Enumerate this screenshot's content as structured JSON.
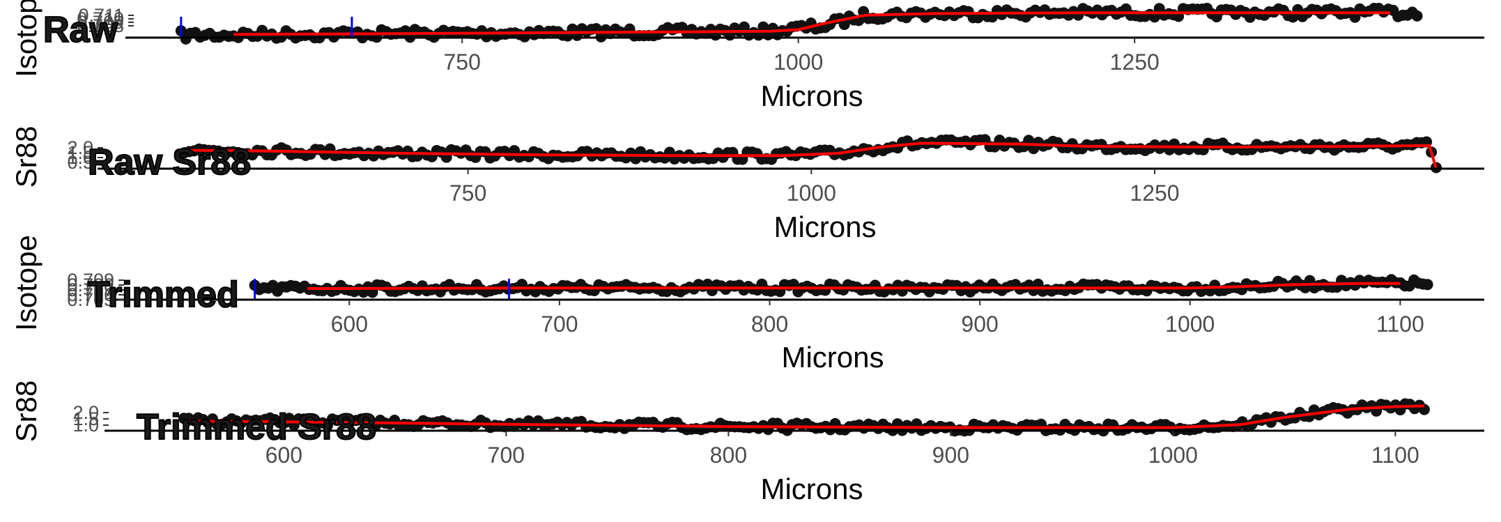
{
  "colors": {
    "points": "#111111",
    "fit_line": "#ff0000",
    "markers": "#0000ff",
    "axis": "#000000"
  },
  "chart_data": [
    {
      "type": "scatter",
      "title": "Raw",
      "xlabel": "Microns",
      "ylabel": "Isotope",
      "x_ticks": [
        "750",
        "1000",
        "1250"
      ],
      "y_ticks": [
        "0.711",
        "0.710",
        "0.709",
        "0.708"
      ],
      "xlim": [
        510,
        1510
      ],
      "ylim": [
        0.7075,
        0.7115
      ],
      "marker_lines_x": [
        541,
        668
      ],
      "series": [
        {
          "values_x": [
            541,
            600,
            700,
            800,
            900,
            980,
            1020,
            1050,
            1100,
            1200,
            1300,
            1400,
            1460
          ],
          "values_y": [
            0.7078,
            0.7079,
            0.708,
            0.7081,
            0.7082,
            0.7083,
            0.709,
            0.7103,
            0.7105,
            0.7106,
            0.7106,
            0.7106,
            0.7106
          ]
        }
      ],
      "fit_line": {
        "x": [
          580,
          700,
          800,
          900,
          980,
          1000,
          1020,
          1050,
          1100,
          1200,
          1300,
          1400,
          1440
        ],
        "y": [
          0.7079,
          0.708,
          0.7081,
          0.7082,
          0.7083,
          0.7085,
          0.7093,
          0.7103,
          0.7105,
          0.7106,
          0.7106,
          0.7106,
          0.7106
        ]
      }
    },
    {
      "type": "scatter",
      "title": "Raw Sr88",
      "xlabel": "Microns",
      "ylabel": "Sr88",
      "x_ticks": [
        "750",
        "1000",
        "1250"
      ],
      "y_ticks": [
        "2.0",
        "1.5",
        "1.0",
        "0.5"
      ],
      "xlim": [
        530,
        1490
      ],
      "ylim": [
        0.3,
        2.2
      ],
      "series": [
        {
          "values_x": [
            540,
            600,
            700,
            800,
            900,
            980,
            1020,
            1050,
            1080,
            1150,
            1200,
            1300,
            1400,
            1450,
            1455
          ],
          "values_y": [
            1.5,
            1.45,
            1.3,
            1.2,
            1.15,
            1.15,
            1.3,
            1.7,
            1.95,
            1.9,
            1.75,
            1.7,
            1.75,
            1.8,
            0.3
          ]
        }
      ],
      "fit_line": {
        "x": [
          540,
          600,
          700,
          800,
          900,
          980,
          1020,
          1050,
          1080,
          1150,
          1200,
          1300,
          1400,
          1450,
          1455
        ],
        "y": [
          1.5,
          1.45,
          1.3,
          1.2,
          1.15,
          1.15,
          1.3,
          1.7,
          1.95,
          1.9,
          1.75,
          1.7,
          1.75,
          1.8,
          0.3
        ]
      }
    },
    {
      "type": "scatter",
      "title": "Trimmed",
      "xlabel": "Microns",
      "ylabel": "Isotope",
      "x_ticks": [
        "600",
        "700",
        "800",
        "900",
        "1000",
        "1100"
      ],
      "y_ticks": [
        "0.709",
        "0.708",
        "0.707",
        "0.706",
        "0.705"
      ],
      "xlim": [
        520,
        1140
      ],
      "ylim": [
        0.7045,
        0.7095
      ],
      "marker_lines_x": [
        555,
        676
      ],
      "series": [
        {
          "values_x": [
            555,
            600,
            700,
            800,
            900,
            1000,
            1020,
            1050,
            1080,
            1100,
            1113
          ],
          "values_y": [
            0.7065,
            0.7065,
            0.7066,
            0.7066,
            0.7066,
            0.7066,
            0.7068,
            0.7072,
            0.7074,
            0.7074,
            0.7074
          ]
        }
      ],
      "fit_line": {
        "x": [
          580,
          700,
          800,
          900,
          1000,
          1020,
          1050,
          1080,
          1100
        ],
        "y": [
          0.7065,
          0.7066,
          0.7066,
          0.7066,
          0.7066,
          0.7068,
          0.7072,
          0.7074,
          0.7074
        ]
      }
    },
    {
      "type": "scatter",
      "title": "Trimmed Sr88",
      "xlabel": "Microns",
      "ylabel": "Sr88",
      "x_ticks": [
        "600",
        "700",
        "800",
        "900",
        "1000",
        "1100"
      ],
      "y_ticks": [
        "2.0",
        "1.5",
        "1.0"
      ],
      "xlim": [
        535,
        1140
      ],
      "ylim": [
        0.95,
        2.05
      ],
      "series": [
        {
          "values_x": [
            555,
            600,
            700,
            800,
            900,
            1000,
            1030,
            1050,
            1080,
            1100,
            1113
          ],
          "values_y": [
            1.35,
            1.32,
            1.22,
            1.12,
            1.08,
            1.08,
            1.2,
            1.5,
            1.85,
            1.95,
            1.98
          ]
        }
      ],
      "fit_line": {
        "x": [
          555,
          600,
          700,
          800,
          900,
          1000,
          1030,
          1050,
          1080,
          1100,
          1113
        ],
        "y": [
          1.35,
          1.32,
          1.22,
          1.12,
          1.08,
          1.08,
          1.2,
          1.5,
          1.85,
          1.95,
          1.98
        ]
      }
    }
  ]
}
